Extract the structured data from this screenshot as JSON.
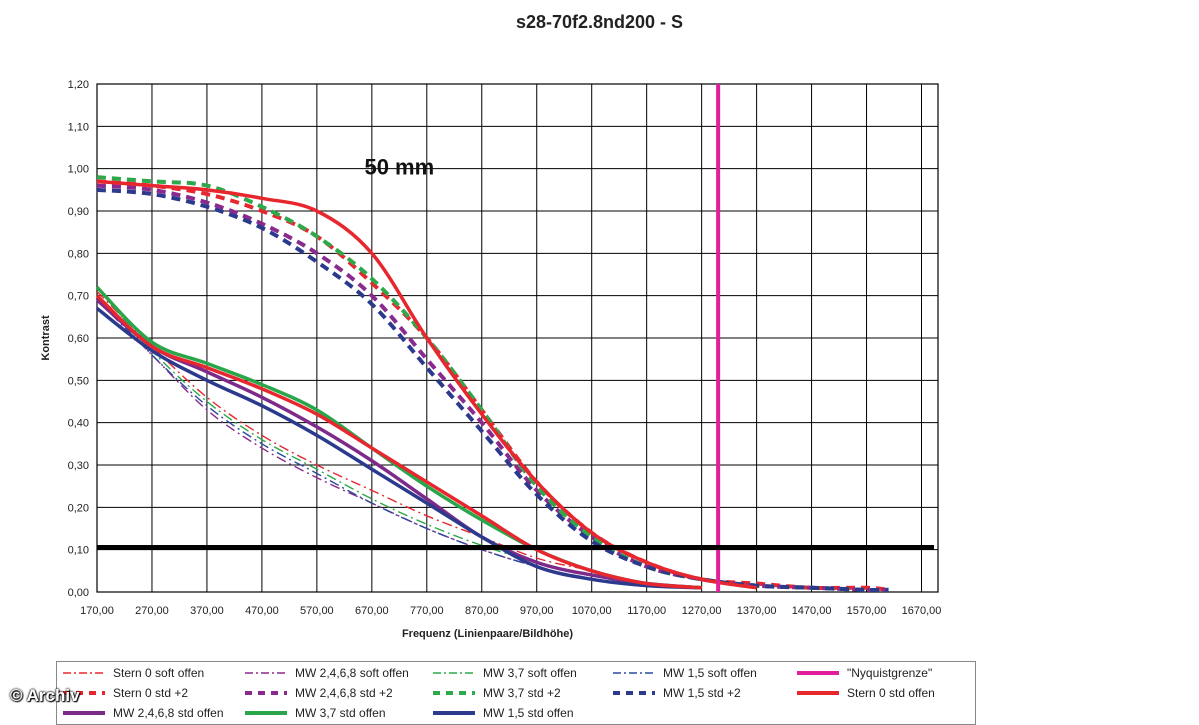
{
  "chart_data": {
    "type": "line",
    "title": "s28-70f2.8nd200 - S",
    "annotation": "50 mm",
    "xlabel": "Frequenz (Linienpaare/Bildhöhe)",
    "ylabel": "Kontrast",
    "xlim": [
      170,
      1700
    ],
    "ylim": [
      0,
      1.2
    ],
    "x_ticks": [
      "170,00",
      "270,00",
      "370,00",
      "470,00",
      "570,00",
      "670,00",
      "770,00",
      "870,00",
      "970,00",
      "1070,00",
      "1170,00",
      "1270,00",
      "1370,00",
      "1470,00",
      "1570,00",
      "1670,00"
    ],
    "y_ticks": [
      "0,00",
      "0,10",
      "0,20",
      "0,30",
      "0,40",
      "0,50",
      "0,60",
      "0,70",
      "0,80",
      "0,90",
      "1,00",
      "1,10",
      "1,20"
    ],
    "grid": true,
    "legend_position": "bottom",
    "reference_lines": {
      "nyquist_x": 1300,
      "threshold_y": 0.105
    },
    "series": [
      {
        "name": "Stern 0 soft offen",
        "color": "#e8262e",
        "style": "dashdot",
        "x": [
          170,
          270,
          370,
          470,
          570,
          670,
          770,
          870,
          970,
          1070,
          1170,
          1270
        ],
        "y": [
          0.71,
          0.58,
          0.46,
          0.37,
          0.3,
          0.24,
          0.18,
          0.13,
          0.08,
          0.05,
          0.02,
          0.01
        ]
      },
      {
        "name": "MW 2,4,6,8 soft offen",
        "color": "#8a2a8e",
        "style": "dashdot",
        "x": [
          170,
          270,
          370,
          470,
          570,
          670,
          770,
          870,
          970,
          1070,
          1170,
          1270
        ],
        "y": [
          0.69,
          0.56,
          0.43,
          0.34,
          0.27,
          0.21,
          0.15,
          0.1,
          0.06,
          0.03,
          0.02,
          0.01
        ]
      },
      {
        "name": "MW 3,7 soft offen",
        "color": "#2da84a",
        "style": "dashdot",
        "x": [
          170,
          270,
          370,
          470,
          570,
          670,
          770,
          870,
          970,
          1070,
          1170,
          1270
        ],
        "y": [
          0.72,
          0.57,
          0.45,
          0.36,
          0.29,
          0.22,
          0.16,
          0.11,
          0.07,
          0.04,
          0.02,
          0.01
        ]
      },
      {
        "name": "MW 1,5 soft offen",
        "color": "#2b4aa0",
        "style": "dashdot",
        "x": [
          170,
          270,
          370,
          470,
          570,
          670,
          770,
          870,
          970,
          1070,
          1170,
          1270
        ],
        "y": [
          0.7,
          0.56,
          0.44,
          0.35,
          0.28,
          0.21,
          0.15,
          0.1,
          0.06,
          0.03,
          0.02,
          0.01
        ]
      },
      {
        "name": "\"Nyquistgrenze\"",
        "color": "#e0209a",
        "style": "solid"
      },
      {
        "name": "Stern 0 std +2",
        "color": "#e8262e",
        "style": "dash",
        "x": [
          170,
          270,
          370,
          470,
          570,
          670,
          770,
          870,
          970,
          1070,
          1170,
          1270,
          1370,
          1470,
          1570,
          1610
        ],
        "y": [
          0.97,
          0.96,
          0.94,
          0.9,
          0.84,
          0.73,
          0.6,
          0.43,
          0.26,
          0.14,
          0.07,
          0.03,
          0.02,
          0.01,
          0.01,
          0.005
        ]
      },
      {
        "name": "MW 2,4,6,8 std +2",
        "color": "#8a2a8e",
        "style": "dash",
        "x": [
          170,
          270,
          370,
          470,
          570,
          670,
          770,
          870,
          970,
          1070,
          1170,
          1270,
          1370,
          1470,
          1570,
          1610
        ],
        "y": [
          0.96,
          0.95,
          0.92,
          0.87,
          0.8,
          0.7,
          0.55,
          0.4,
          0.24,
          0.13,
          0.06,
          0.03,
          0.015,
          0.01,
          0.005,
          0.005
        ]
      },
      {
        "name": "MW 3,7 std +2",
        "color": "#2da84a",
        "style": "dash",
        "x": [
          170,
          270,
          370,
          470,
          570,
          670,
          770,
          870,
          970,
          1070,
          1170,
          1270,
          1370,
          1470,
          1570,
          1610
        ],
        "y": [
          0.98,
          0.97,
          0.96,
          0.91,
          0.84,
          0.74,
          0.6,
          0.43,
          0.25,
          0.13,
          0.06,
          0.03,
          0.015,
          0.01,
          0.005,
          0.005
        ]
      },
      {
        "name": "MW 1,5 std +2",
        "color": "#2b3a8c",
        "style": "dash",
        "x": [
          170,
          270,
          370,
          470,
          570,
          670,
          770,
          870,
          970,
          1070,
          1170,
          1270,
          1370,
          1470,
          1570,
          1610
        ],
        "y": [
          0.95,
          0.94,
          0.91,
          0.86,
          0.78,
          0.68,
          0.53,
          0.38,
          0.23,
          0.12,
          0.06,
          0.03,
          0.015,
          0.01,
          0.005,
          0.005
        ]
      },
      {
        "name": "Stern 0 std offen",
        "color": "#e8262e",
        "style": "solid",
        "x": [
          170,
          270,
          370,
          470,
          570,
          670,
          770,
          870,
          970,
          1070,
          1170,
          1270,
          1370
        ],
        "y": [
          0.97,
          0.96,
          0.95,
          0.93,
          0.9,
          0.8,
          0.6,
          0.42,
          0.26,
          0.14,
          0.07,
          0.03,
          0.01
        ]
      }
    ],
    "series_mtf_std_offen": [
      {
        "name": "MW 2,4,6,8 std offen",
        "color": "#7e2a8a",
        "style": "solid",
        "x": [
          170,
          270,
          370,
          470,
          570,
          670,
          770,
          870,
          970,
          1070,
          1170,
          1270
        ],
        "y": [
          0.69,
          0.58,
          0.52,
          0.46,
          0.39,
          0.31,
          0.22,
          0.13,
          0.07,
          0.04,
          0.02,
          0.01
        ]
      },
      {
        "name": "MW 3,7 std offen",
        "color": "#2aa64a",
        "style": "solid",
        "x": [
          170,
          270,
          370,
          470,
          570,
          670,
          770,
          870,
          970,
          1070,
          1170,
          1270
        ],
        "y": [
          0.72,
          0.59,
          0.54,
          0.49,
          0.43,
          0.34,
          0.25,
          0.17,
          0.1,
          0.05,
          0.02,
          0.01
        ]
      },
      {
        "name": "MW 1,5 std offen",
        "color": "#2b3a8c",
        "style": "solid",
        "x": [
          170,
          270,
          370,
          470,
          570,
          670,
          770,
          870,
          970,
          1070,
          1170,
          1270
        ],
        "y": [
          0.67,
          0.57,
          0.5,
          0.44,
          0.37,
          0.29,
          0.21,
          0.13,
          0.06,
          0.03,
          0.015,
          0.01
        ]
      },
      {
        "name": "Stern 0 std offen curve",
        "color": "#e8262e",
        "style": "solid",
        "x": [
          170,
          270,
          370,
          470,
          570,
          670,
          770,
          870,
          970,
          1070,
          1170,
          1270
        ],
        "y": [
          0.7,
          0.58,
          0.53,
          0.48,
          0.42,
          0.34,
          0.26,
          0.18,
          0.1,
          0.05,
          0.02,
          0.01
        ]
      }
    ],
    "legend_rows": [
      [
        "Stern 0 soft offen",
        "MW 2,4,6,8 soft offen",
        "MW 3,7 soft offen",
        "MW 1,5 soft offen",
        "\"Nyquistgrenze\""
      ],
      [
        "Stern 0 std +2",
        "MW 2,4,6,8 std +2",
        "MW 3,7 std +2",
        "MW 1,5 std +2",
        "Stern 0 std offen"
      ],
      [
        "MW 2,4,6,8 std offen",
        "MW 3,7 std offen",
        "MW 1,5 std offen"
      ]
    ]
  },
  "watermark": "© Archiv"
}
